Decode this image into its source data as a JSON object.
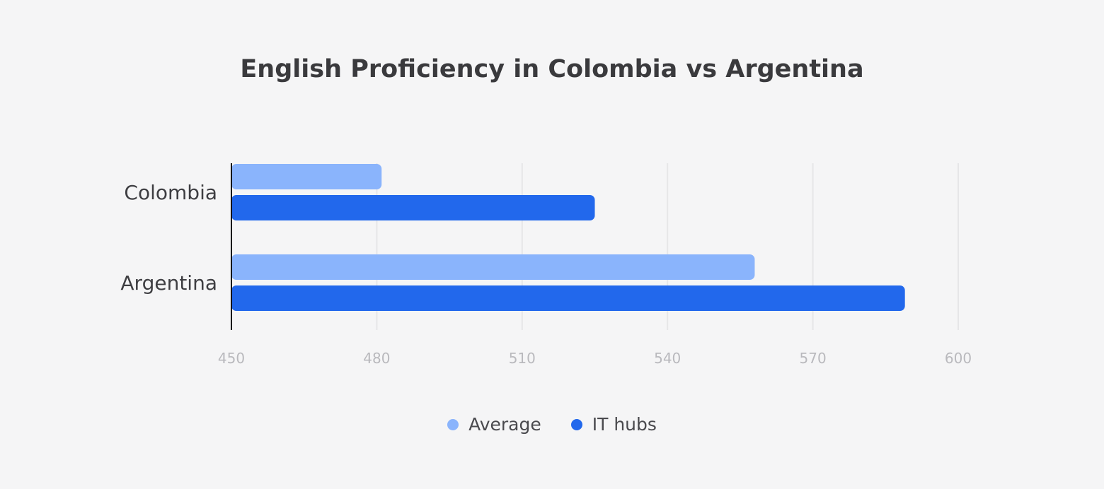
{
  "chart_data": {
    "type": "bar",
    "orientation": "horizontal",
    "title": "English Proficiency in Colombia vs Argentina",
    "categories": [
      "Colombia",
      "Argentina"
    ],
    "series": [
      {
        "name": "Average",
        "values": [
          481,
          558
        ],
        "color": "#8ab4fc"
      },
      {
        "name": "IT hubs",
        "values": [
          525,
          589
        ],
        "color": "#2268ec"
      }
    ],
    "xlim": [
      450,
      600
    ],
    "xticks": [
      450,
      480,
      510,
      540,
      570,
      600
    ],
    "grid": true,
    "legend_position": "bottom-center"
  }
}
